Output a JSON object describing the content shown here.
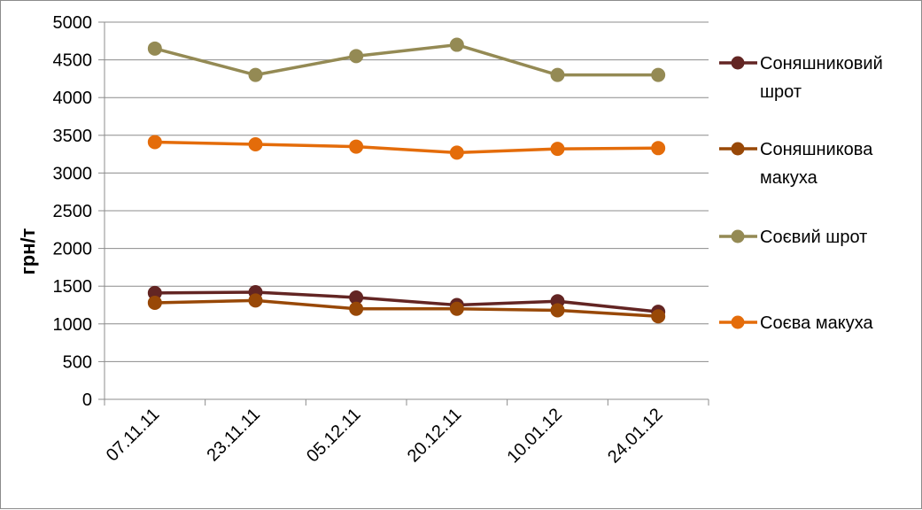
{
  "chart_data": {
    "type": "line",
    "title": "",
    "xlabel": "",
    "ylabel": "грн/т",
    "ylim": [
      0,
      5000
    ],
    "ytick_step": 500,
    "grid": true,
    "legend_position": "right",
    "categories": [
      "07.11.11",
      "23.11.11",
      "05.12.11",
      "20.12.11",
      "10.01.12",
      "24.01.12"
    ],
    "series": [
      {
        "name_lines": [
          "Соняшниковий",
          "шрот"
        ],
        "color": "#632523",
        "values": [
          1410,
          1420,
          1350,
          1250,
          1300,
          1160
        ]
      },
      {
        "name_lines": [
          "Соняшникова",
          "макуха"
        ],
        "color": "#984807",
        "values": [
          1280,
          1310,
          1200,
          1200,
          1180,
          1100
        ]
      },
      {
        "name_lines": [
          "Соєвий шрот"
        ],
        "color": "#948a54",
        "values": [
          4650,
          4300,
          4550,
          4700,
          4300,
          4300
        ]
      },
      {
        "name_lines": [
          "Соєва макуха"
        ],
        "color": "#e46c0a",
        "values": [
          3410,
          3380,
          3350,
          3270,
          3320,
          3330
        ]
      }
    ]
  }
}
